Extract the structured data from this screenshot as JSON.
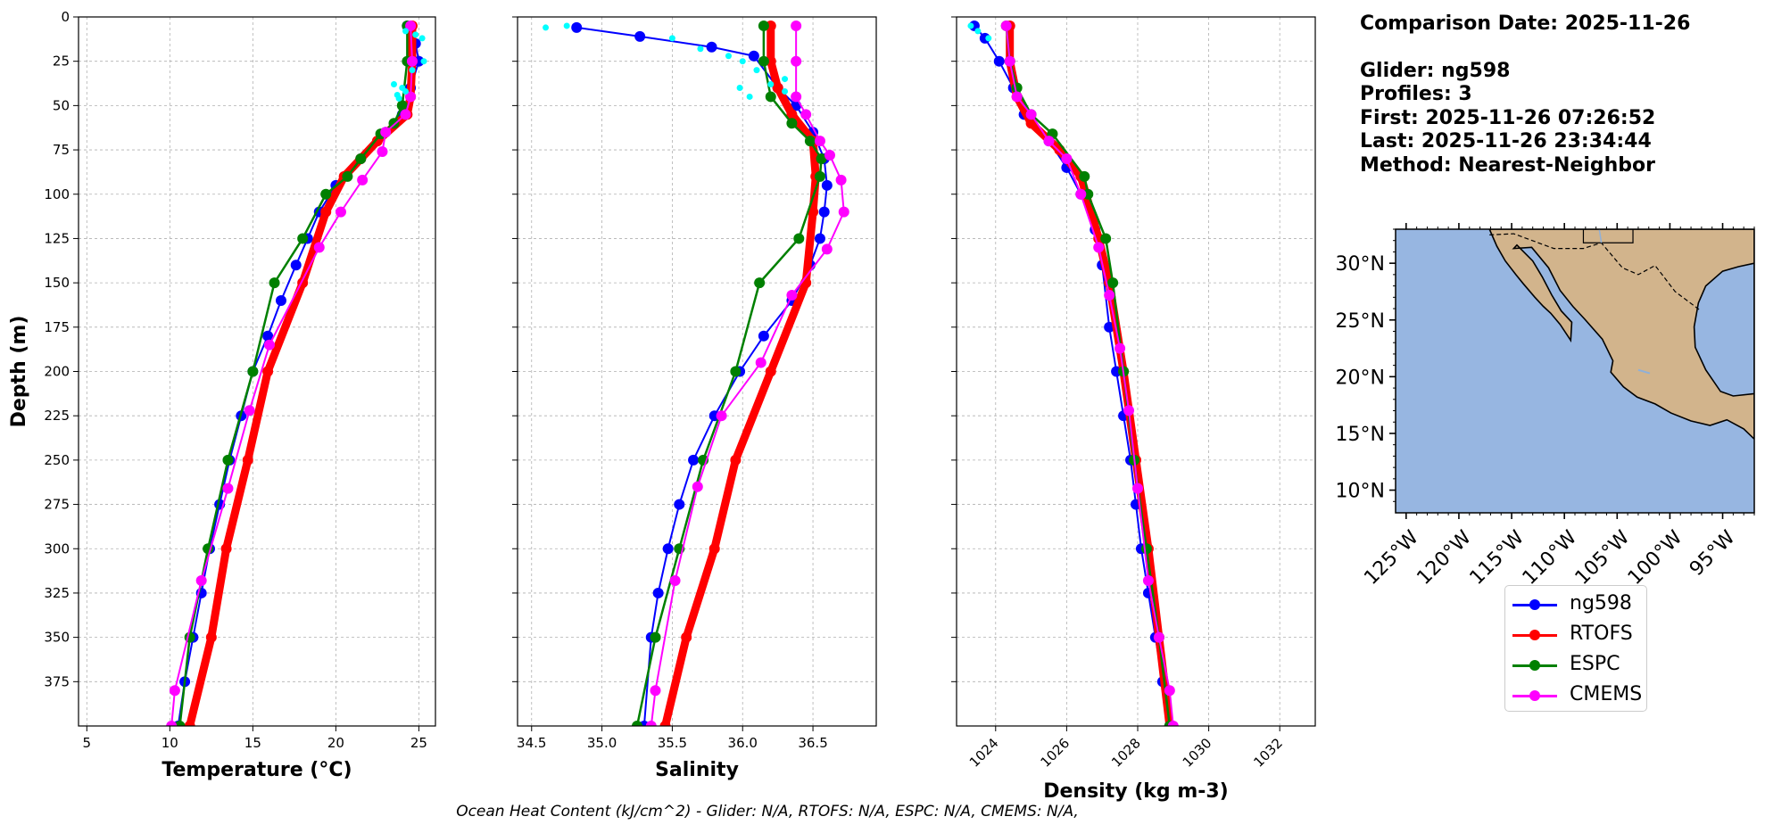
{
  "info": {
    "comparison": "Comparison Date: 2025-11-26",
    "glider": "Glider: ng598",
    "profiles": "Profiles: 3",
    "first": "First: 2025-11-26 07:26:52",
    "last": "Last: 2025-11-26 23:34:44",
    "method": "Method: Nearest-Neighbor"
  },
  "footer": "Ocean Heat Content (kJ/cm^2) - Glider: N/A,  RTOFS: N/A,  ESPC: N/A,  CMEMS: N/A,",
  "colors": {
    "ng598": "#0000ff",
    "RTOFS": "#ff0000",
    "ESPC": "#008000",
    "CMEMS": "#ff00ff",
    "raw": "#00ffff",
    "ocean": "#97b6e1",
    "land": "#d2b48c"
  },
  "legend": [
    {
      "name": "ng598",
      "color": "#0000ff"
    },
    {
      "name": "RTOFS",
      "color": "#ff0000"
    },
    {
      "name": "ESPC",
      "color": "#008000"
    },
    {
      "name": "CMEMS",
      "color": "#ff00ff"
    }
  ],
  "map": {
    "lat_ticks": [
      "30°N",
      "25°N",
      "20°N",
      "15°N",
      "10°N"
    ],
    "lon_ticks": [
      "125°W",
      "120°W",
      "115°W",
      "110°W",
      "105°W",
      "100°W",
      "95°W"
    ],
    "lat_values": [
      30,
      25,
      20,
      15,
      10
    ],
    "lon_values": [
      -125,
      -120,
      -115,
      -110,
      -105,
      -100,
      -95
    ],
    "extent": {
      "lon_min": -126,
      "lon_max": -92,
      "lat_min": 8,
      "lat_max": 33
    }
  },
  "chart_data": [
    {
      "type": "line",
      "xlabel": "Temperature (°C)",
      "ylabel": "Depth (m)",
      "xlim": [
        4.5,
        26
      ],
      "ylim": [
        400,
        0
      ],
      "xticks": [
        5,
        10,
        15,
        20,
        25
      ],
      "yticks": [
        0,
        25,
        50,
        75,
        100,
        125,
        150,
        175,
        200,
        225,
        250,
        275,
        300,
        325,
        350,
        375
      ],
      "grid": true,
      "series": [
        {
          "name": "ng598",
          "x": [
            24.3,
            24.8,
            25.0,
            24.5,
            24.0,
            23.0,
            21.5,
            20.0,
            19.0,
            18.3,
            17.6,
            16.7,
            15.9,
            15.0,
            14.3,
            13.6,
            13.0,
            12.4,
            11.9,
            11.4,
            10.9,
            10.5
          ],
          "y": [
            5,
            15,
            25,
            40,
            55,
            65,
            80,
            95,
            110,
            125,
            140,
            160,
            180,
            200,
            225,
            250,
            275,
            300,
            325,
            350,
            375,
            400
          ]
        },
        {
          "name": "RTOFS",
          "x": [
            24.6,
            24.6,
            24.5,
            24.3,
            22.5,
            21.5,
            20.5,
            19.4,
            18.0,
            15.9,
            14.7,
            13.4,
            12.5,
            11.2
          ],
          "y": [
            5,
            25,
            45,
            55,
            70,
            80,
            90,
            110,
            150,
            200,
            250,
            300,
            350,
            400
          ]
        },
        {
          "name": "ESPC",
          "x": [
            24.3,
            24.3,
            24.0,
            23.5,
            22.7,
            21.5,
            20.7,
            19.4,
            18.0,
            16.3,
            15.0,
            13.5,
            12.3,
            11.2,
            10.6
          ],
          "y": [
            5,
            25,
            50,
            60,
            66,
            80,
            90,
            100,
            125,
            150,
            200,
            250,
            300,
            350,
            400
          ]
        },
        {
          "name": "CMEMS",
          "x": [
            24.5,
            24.6,
            24.5,
            24.2,
            23.0,
            22.8,
            21.6,
            20.3,
            19.0,
            16.0,
            14.8,
            13.5,
            11.9,
            10.3,
            10.1
          ],
          "y": [
            5,
            25,
            45,
            55,
            65,
            76,
            92,
            110,
            130,
            185,
            222,
            266,
            318,
            380,
            400
          ]
        },
        {
          "name": "",
          "x": [
            23.5,
            24.0,
            24.2,
            23.7,
            23.8,
            24.2,
            24.8,
            25.2,
            25.3,
            24.6
          ],
          "y": [
            38,
            40,
            42,
            44,
            46,
            8,
            10,
            12,
            25,
            30
          ]
        }
      ]
    },
    {
      "type": "line",
      "xlabel": "Salinity",
      "ylabel": "",
      "xlim": [
        34.4,
        36.95
      ],
      "ylim": [
        400,
        0
      ],
      "xticks": [
        34.5,
        35.0,
        35.5,
        36.0,
        36.5
      ],
      "yticks": [
        0,
        25,
        50,
        75,
        100,
        125,
        150,
        175,
        200,
        225,
        250,
        275,
        300,
        325,
        350,
        375
      ],
      "grid": true,
      "series": [
        {
          "name": "ng598",
          "x": [
            34.82,
            35.27,
            35.78,
            36.08,
            36.25,
            36.38,
            36.5,
            36.58,
            36.6,
            36.58,
            36.55,
            36.48,
            36.35,
            36.15,
            35.98,
            35.8,
            35.65,
            35.55,
            35.47,
            35.4,
            35.35,
            35.3
          ],
          "y": [
            6,
            11,
            17,
            22,
            40,
            50,
            65,
            80,
            95,
            110,
            125,
            140,
            160,
            180,
            200,
            225,
            250,
            275,
            300,
            325,
            350,
            400
          ]
        },
        {
          "name": "RTOFS",
          "x": [
            36.2,
            36.2,
            36.25,
            36.35,
            36.5,
            36.52,
            36.5,
            36.45,
            36.2,
            35.95,
            35.8,
            35.6,
            35.45
          ],
          "y": [
            5,
            25,
            40,
            55,
            70,
            90,
            110,
            150,
            200,
            250,
            300,
            350,
            400
          ]
        },
        {
          "name": "ESPC",
          "x": [
            36.15,
            36.15,
            36.2,
            36.35,
            36.48,
            36.56,
            36.55,
            36.4,
            36.12,
            35.95,
            35.72,
            35.55,
            35.38,
            35.25
          ],
          "y": [
            5,
            25,
            45,
            60,
            70,
            80,
            90,
            125,
            150,
            200,
            250,
            300,
            350,
            400
          ]
        },
        {
          "name": "CMEMS",
          "x": [
            36.38,
            36.38,
            36.38,
            36.45,
            36.55,
            36.62,
            36.7,
            36.72,
            36.6,
            36.35,
            36.13,
            35.85,
            35.68,
            35.52,
            35.38,
            35.35
          ],
          "y": [
            5,
            25,
            45,
            55,
            70,
            78,
            92,
            110,
            131,
            157,
            195,
            225,
            265,
            318,
            380,
            400
          ]
        },
        {
          "name": "",
          "x": [
            34.6,
            34.75,
            35.5,
            35.7,
            35.9,
            36.0,
            36.1,
            36.3,
            35.98,
            36.05,
            36.2,
            36.3
          ],
          "y": [
            6,
            5,
            12,
            18,
            22,
            25,
            30,
            35,
            40,
            45,
            38,
            42
          ]
        }
      ]
    },
    {
      "type": "line",
      "xlabel": "Density (kg m-3)",
      "ylabel": "",
      "xlim": [
        1022.9,
        1033.0
      ],
      "ylim": [
        400,
        0
      ],
      "xticks": [
        1024,
        1026,
        1028,
        1030,
        1032
      ],
      "yticks": [
        0,
        25,
        50,
        75,
        100,
        125,
        150,
        175,
        200,
        225,
        250,
        275,
        300,
        325,
        350,
        375
      ],
      "grid": true,
      "series": [
        {
          "name": "ng598",
          "x": [
            1023.4,
            1023.7,
            1024.1,
            1024.5,
            1024.8,
            1025.5,
            1026.0,
            1026.4,
            1026.8,
            1027.0,
            1027.2,
            1027.4,
            1027.6,
            1027.8,
            1027.95,
            1028.1,
            1028.3,
            1028.5,
            1028.7,
            1028.9
          ],
          "y": [
            5,
            12,
            25,
            40,
            55,
            70,
            85,
            100,
            120,
            140,
            175,
            200,
            225,
            250,
            275,
            300,
            325,
            350,
            375,
            400
          ]
        },
        {
          "name": "RTOFS",
          "x": [
            1024.4,
            1024.4,
            1024.6,
            1025.0,
            1025.8,
            1026.4,
            1026.9,
            1027.2,
            1027.6,
            1027.95,
            1028.3,
            1028.6,
            1028.9
          ],
          "y": [
            5,
            25,
            45,
            60,
            75,
            90,
            125,
            150,
            200,
            250,
            300,
            350,
            400
          ]
        },
        {
          "name": "ESPC",
          "x": [
            1024.3,
            1024.4,
            1024.6,
            1025.0,
            1025.6,
            1026.5,
            1026.6,
            1027.1,
            1027.3,
            1027.6,
            1027.9,
            1028.25,
            1028.6,
            1028.9
          ],
          "y": [
            5,
            25,
            40,
            55,
            66,
            90,
            100,
            125,
            150,
            200,
            250,
            300,
            350,
            400
          ]
        },
        {
          "name": "CMEMS",
          "x": [
            1024.3,
            1024.4,
            1024.6,
            1025.0,
            1025.5,
            1026.0,
            1026.4,
            1026.9,
            1027.2,
            1027.5,
            1027.75,
            1028.0,
            1028.3,
            1028.6,
            1028.9,
            1029.0
          ],
          "y": [
            5,
            25,
            45,
            55,
            70,
            80,
            100,
            130,
            157,
            187,
            222,
            266,
            318,
            350,
            380,
            400
          ]
        },
        {
          "name": "",
          "x": [
            1023.3,
            1023.5,
            1023.8
          ],
          "y": [
            5,
            8,
            12
          ]
        }
      ]
    }
  ]
}
